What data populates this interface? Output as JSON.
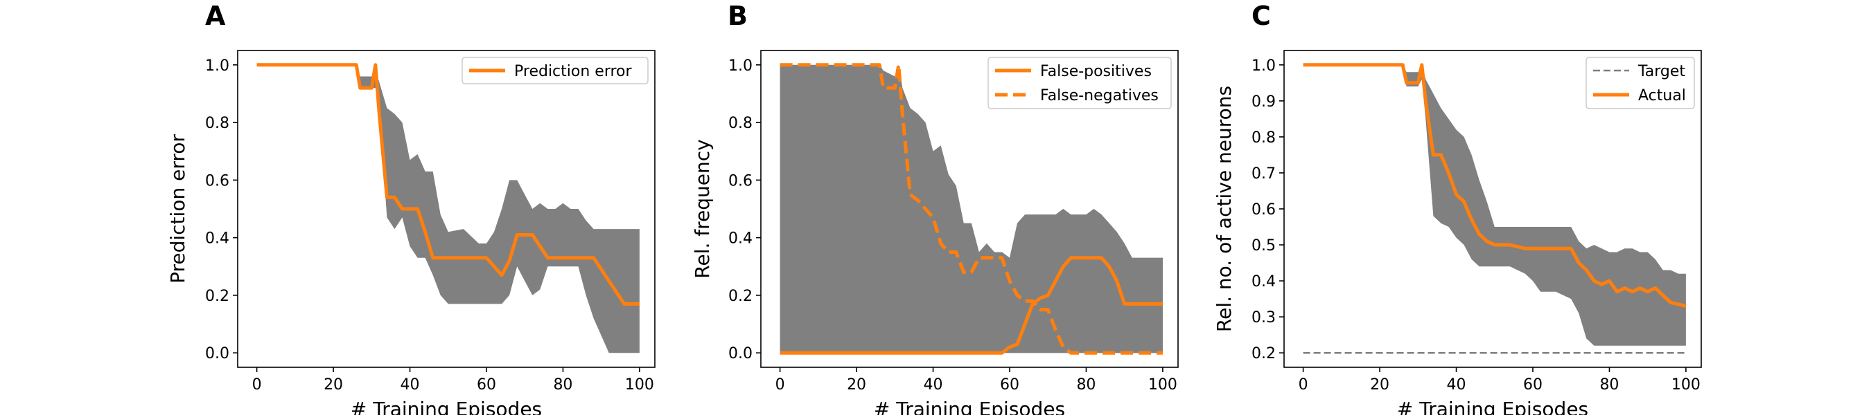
{
  "figure": {
    "colors": {
      "line": "#ff7f0e",
      "band": "#808080",
      "target": "#808080"
    }
  },
  "chart_data": [
    {
      "panel_letter": "A",
      "type": "line",
      "xlabel": "# Training Episodes",
      "ylabel": "Prediction error",
      "xlim": [
        -5,
        104
      ],
      "ylim": [
        -0.05,
        1.05
      ],
      "xticks": [
        0,
        20,
        40,
        60,
        80,
        100
      ],
      "xtick_labels": [
        "0",
        "20",
        "40",
        "60",
        "80",
        "100"
      ],
      "yticks": [
        0.0,
        0.2,
        0.4,
        0.6,
        0.8,
        1.0
      ],
      "ytick_labels": [
        "0.0",
        "0.2",
        "0.4",
        "0.6",
        "0.8",
        "1.0"
      ],
      "grid": false,
      "legend_position": "top-right",
      "series": [
        {
          "name": "Prediction error",
          "style": "solid",
          "x": [
            0,
            26,
            27,
            30,
            31,
            32,
            34,
            36,
            38,
            40,
            42,
            44,
            46,
            50,
            58,
            60,
            62,
            64,
            66,
            68,
            70,
            72,
            74,
            76,
            80,
            84,
            86,
            88,
            90,
            92,
            94,
            96,
            100
          ],
          "y": [
            1.0,
            1.0,
            0.92,
            0.92,
            1.0,
            0.83,
            0.54,
            0.54,
            0.5,
            0.5,
            0.5,
            0.42,
            0.33,
            0.33,
            0.33,
            0.33,
            0.3,
            0.27,
            0.32,
            0.41,
            0.41,
            0.41,
            0.37,
            0.33,
            0.33,
            0.33,
            0.33,
            0.33,
            0.29,
            0.25,
            0.21,
            0.17,
            0.17
          ]
        }
      ],
      "bands": [
        {
          "x": [
            0,
            26,
            27,
            30,
            31,
            32,
            34,
            36,
            38,
            40,
            42,
            44,
            46,
            48,
            50,
            54,
            58,
            60,
            62,
            64,
            66,
            68,
            70,
            72,
            74,
            76,
            78,
            80,
            82,
            84,
            86,
            88,
            90,
            92,
            94,
            96,
            98,
            100
          ],
          "lower": [
            1.0,
            1.0,
            0.92,
            0.92,
            0.92,
            0.85,
            0.47,
            0.43,
            0.47,
            0.37,
            0.33,
            0.33,
            0.27,
            0.2,
            0.17,
            0.17,
            0.17,
            0.17,
            0.17,
            0.17,
            0.2,
            0.3,
            0.25,
            0.2,
            0.22,
            0.3,
            0.3,
            0.3,
            0.3,
            0.3,
            0.2,
            0.12,
            0.06,
            0.0,
            0.0,
            0.0,
            0.0,
            0.0
          ],
          "upper": [
            1.0,
            1.0,
            0.96,
            0.96,
            0.98,
            0.94,
            0.85,
            0.83,
            0.8,
            0.67,
            0.69,
            0.63,
            0.63,
            0.48,
            0.42,
            0.43,
            0.38,
            0.38,
            0.42,
            0.5,
            0.6,
            0.6,
            0.55,
            0.5,
            0.52,
            0.5,
            0.5,
            0.52,
            0.5,
            0.5,
            0.46,
            0.43,
            0.43,
            0.43,
            0.43,
            0.43,
            0.43,
            0.43
          ]
        }
      ]
    },
    {
      "panel_letter": "B",
      "type": "line",
      "xlabel": "# Training Episodes",
      "ylabel": "Rel. frequency",
      "xlim": [
        -5,
        104
      ],
      "ylim": [
        -0.05,
        1.05
      ],
      "xticks": [
        0,
        20,
        40,
        60,
        80,
        100
      ],
      "xtick_labels": [
        "0",
        "20",
        "40",
        "60",
        "80",
        "100"
      ],
      "yticks": [
        0.0,
        0.2,
        0.4,
        0.6,
        0.8,
        1.0
      ],
      "ytick_labels": [
        "0.0",
        "0.2",
        "0.4",
        "0.6",
        "0.8",
        "1.0"
      ],
      "grid": false,
      "legend_position": "top-right",
      "series": [
        {
          "name": "False-positives",
          "style": "solid",
          "x": [
            0,
            58,
            60,
            62,
            64,
            66,
            68,
            70,
            72,
            74,
            76,
            78,
            80,
            84,
            86,
            88,
            90,
            92,
            94,
            100
          ],
          "y": [
            0.0,
            0.0,
            0.02,
            0.03,
            0.1,
            0.17,
            0.19,
            0.2,
            0.25,
            0.3,
            0.33,
            0.33,
            0.33,
            0.33,
            0.3,
            0.25,
            0.17,
            0.17,
            0.17,
            0.17
          ]
        },
        {
          "name": "False-negatives",
          "style": "dashed",
          "x": [
            0,
            26,
            27,
            30,
            31,
            32,
            34,
            36,
            38,
            40,
            42,
            44,
            46,
            48,
            50,
            52,
            54,
            56,
            58,
            60,
            62,
            64,
            66,
            68,
            70,
            72,
            74,
            76,
            100
          ],
          "y": [
            1.0,
            1.0,
            0.92,
            0.92,
            1.0,
            0.83,
            0.55,
            0.53,
            0.5,
            0.47,
            0.38,
            0.35,
            0.35,
            0.28,
            0.28,
            0.33,
            0.33,
            0.33,
            0.33,
            0.25,
            0.2,
            0.18,
            0.18,
            0.15,
            0.15,
            0.08,
            0.02,
            0.0,
            0.0
          ]
        }
      ],
      "bands": [
        {
          "x": [
            0,
            26,
            27,
            30,
            31,
            32,
            34,
            36,
            38,
            40,
            42,
            44,
            46,
            48,
            50,
            52,
            54,
            56,
            58,
            60,
            62,
            64,
            66,
            68,
            70,
            72,
            74,
            76,
            78,
            80,
            82,
            84,
            86,
            88,
            90,
            92,
            94,
            96,
            98,
            100
          ],
          "lower": [
            0.0,
            0.0,
            0.0,
            0.0,
            0.0,
            0.0,
            0.0,
            0.0,
            0.0,
            0.0,
            0.0,
            0.0,
            0.0,
            0.0,
            0.0,
            0.0,
            0.0,
            0.0,
            0.0,
            0.0,
            0.0,
            0.0,
            0.0,
            0.0,
            0.0,
            0.0,
            0.0,
            0.0,
            0.0,
            0.0,
            0.0,
            0.0,
            0.0,
            0.0,
            0.0,
            0.0,
            0.0,
            0.0,
            0.0,
            0.0
          ],
          "upper": [
            1.0,
            1.0,
            0.98,
            0.96,
            1.0,
            0.92,
            0.85,
            0.83,
            0.8,
            0.7,
            0.72,
            0.62,
            0.58,
            0.45,
            0.45,
            0.35,
            0.38,
            0.35,
            0.35,
            0.33,
            0.45,
            0.48,
            0.48,
            0.48,
            0.48,
            0.48,
            0.5,
            0.48,
            0.48,
            0.48,
            0.5,
            0.48,
            0.45,
            0.42,
            0.38,
            0.33,
            0.33,
            0.33,
            0.33,
            0.33
          ]
        },
        {
          "x": [
            0,
            26,
            27,
            30,
            31,
            32,
            34,
            36,
            38,
            40,
            42,
            44,
            46,
            48,
            50,
            52,
            54,
            56,
            58,
            60,
            62,
            64,
            66,
            68,
            70,
            72,
            74,
            76,
            78,
            80,
            82,
            84,
            86,
            88,
            90,
            92,
            94,
            96,
            98,
            100
          ],
          "lower": [
            1.0,
            1.0,
            0.92,
            0.92,
            0.95,
            0.8,
            0.42,
            0.38,
            0.35,
            0.33,
            0.3,
            0.2,
            0.08,
            0.0,
            0.0,
            0.0,
            0.0,
            0.0,
            0.0,
            0.0,
            0.0,
            0.0,
            0.0,
            0.0,
            0.0,
            0.0,
            0.0,
            0.0,
            0.0,
            0.0,
            0.0,
            0.0,
            0.0,
            0.0,
            0.0,
            0.0,
            0.0,
            0.0,
            0.0,
            0.0
          ],
          "upper": [
            1.0,
            1.0,
            0.98,
            0.96,
            1.0,
            0.92,
            0.85,
            0.83,
            0.8,
            0.7,
            0.72,
            0.62,
            0.58,
            0.45,
            0.45,
            0.35,
            0.38,
            0.35,
            0.35,
            0.33,
            0.45,
            0.48,
            0.48,
            0.48,
            0.48,
            0.48,
            0.5,
            0.48,
            0.48,
            0.48,
            0.5,
            0.48,
            0.45,
            0.42,
            0.38,
            0.33,
            0.33,
            0.33,
            0.33,
            0.33
          ]
        }
      ]
    },
    {
      "panel_letter": "C",
      "type": "line",
      "xlabel": "# Training Episodes",
      "ylabel": "Rel. no. of active neurons",
      "xlim": [
        -5,
        104
      ],
      "ylim": [
        0.16,
        1.04
      ],
      "xticks": [
        0,
        20,
        40,
        60,
        80,
        100
      ],
      "xtick_labels": [
        "0",
        "20",
        "40",
        "60",
        "80",
        "100"
      ],
      "yticks": [
        0.2,
        0.3,
        0.4,
        0.5,
        0.6,
        0.7,
        0.8,
        0.9,
        1.0
      ],
      "ytick_labels": [
        "0.2",
        "0.3",
        "0.4",
        "0.5",
        "0.6",
        "0.7",
        "0.8",
        "0.9",
        "1.0"
      ],
      "grid": false,
      "legend_position": "top-right",
      "series": [
        {
          "name": "Target",
          "style": "dashed-thin",
          "x": [
            0,
            100
          ],
          "y": [
            0.2,
            0.2
          ]
        },
        {
          "name": "Actual",
          "style": "solid",
          "x": [
            0,
            26,
            27,
            30,
            31,
            32,
            34,
            36,
            38,
            40,
            42,
            44,
            46,
            48,
            50,
            54,
            58,
            62,
            66,
            70,
            72,
            74,
            76,
            78,
            80,
            82,
            84,
            86,
            88,
            90,
            92,
            94,
            96,
            100
          ],
          "y": [
            1.0,
            1.0,
            0.95,
            0.95,
            1.0,
            0.9,
            0.75,
            0.75,
            0.7,
            0.64,
            0.62,
            0.57,
            0.53,
            0.51,
            0.5,
            0.5,
            0.49,
            0.49,
            0.49,
            0.49,
            0.45,
            0.43,
            0.4,
            0.39,
            0.4,
            0.37,
            0.38,
            0.37,
            0.38,
            0.37,
            0.38,
            0.36,
            0.34,
            0.33
          ]
        }
      ],
      "bands": [
        {
          "x": [
            0,
            26,
            27,
            30,
            31,
            32,
            34,
            36,
            38,
            40,
            42,
            44,
            46,
            48,
            50,
            54,
            58,
            60,
            62,
            66,
            70,
            72,
            74,
            76,
            78,
            80,
            82,
            84,
            86,
            88,
            90,
            92,
            94,
            96,
            98,
            100
          ],
          "lower": [
            1.0,
            1.0,
            0.94,
            0.94,
            0.96,
            0.85,
            0.58,
            0.56,
            0.55,
            0.52,
            0.5,
            0.46,
            0.44,
            0.44,
            0.44,
            0.44,
            0.42,
            0.4,
            0.37,
            0.37,
            0.35,
            0.31,
            0.24,
            0.22,
            0.22,
            0.22,
            0.22,
            0.22,
            0.22,
            0.22,
            0.22,
            0.22,
            0.22,
            0.22,
            0.22,
            0.22
          ],
          "upper": [
            1.0,
            1.0,
            0.98,
            0.98,
            1.0,
            0.96,
            0.92,
            0.88,
            0.85,
            0.82,
            0.8,
            0.75,
            0.68,
            0.62,
            0.55,
            0.55,
            0.55,
            0.55,
            0.55,
            0.55,
            0.55,
            0.51,
            0.49,
            0.5,
            0.49,
            0.48,
            0.48,
            0.49,
            0.49,
            0.48,
            0.48,
            0.46,
            0.43,
            0.43,
            0.42,
            0.42
          ]
        }
      ]
    }
  ]
}
